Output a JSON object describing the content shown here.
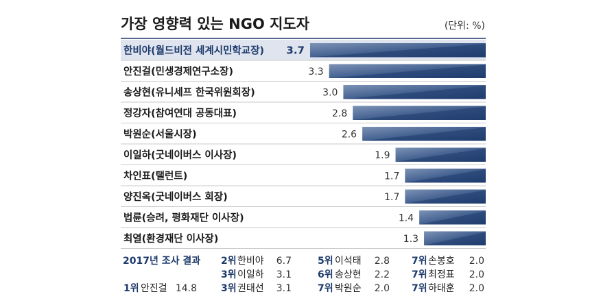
{
  "title": "가장 영향력 있는 NGO 지도자",
  "unit": "(단위: %)",
  "chart_data": {
    "type": "bar",
    "orientation": "horizontal",
    "categories": [
      "한비야(월드비전 세계시민학교장)",
      "안진걸(민생경제연구소장)",
      "송상현(유니세프 한국위원회장)",
      "정강자(참여연대 공동대표)",
      "박원순(서울시장)",
      "이일하(굿네이버스 이사장)",
      "차인표(탤런트)",
      "양진옥(굿네이버스 회장)",
      "법륜(승려, 평화재단 이사장)",
      "최열(환경재단 이사장)"
    ],
    "values": [
      3.7,
      3.3,
      3.0,
      2.8,
      2.6,
      1.9,
      1.7,
      1.7,
      1.4,
      1.3
    ],
    "value_labels": [
      "3.7",
      "3.3",
      "3.0",
      "2.8",
      "2.6",
      "1.9",
      "1.7",
      "1.7",
      "1.4",
      "1.3"
    ],
    "xlim": [
      0,
      3.7
    ],
    "colors": {
      "bar_dark": "#1f3d6e",
      "bar_light": "#6f88ad",
      "highlight_row": "#dfe4ee",
      "accent": "#1d3a6b"
    },
    "highlight_index": 0
  },
  "results_2017": {
    "header": "2017년 조사 결과",
    "entries": [
      {
        "rank": "1위",
        "name": "안진걸",
        "score": "14.8"
      },
      {
        "rank": "2위",
        "name": "한비야",
        "score": "6.7"
      },
      {
        "rank": "3위",
        "name": "이일하",
        "score": "3.1"
      },
      {
        "rank": "3위",
        "name": "권태선",
        "score": "3.1"
      },
      {
        "rank": "5위",
        "name": "이석태",
        "score": "2.8"
      },
      {
        "rank": "6위",
        "name": "송상현",
        "score": "2.2"
      },
      {
        "rank": "7위",
        "name": "박원순",
        "score": "2.0"
      },
      {
        "rank": "7위",
        "name": "손봉호",
        "score": "2.0"
      },
      {
        "rank": "7위",
        "name": "최정표",
        "score": "2.0"
      },
      {
        "rank": "7위",
        "name": "하태훈",
        "score": "2.0"
      }
    ]
  }
}
